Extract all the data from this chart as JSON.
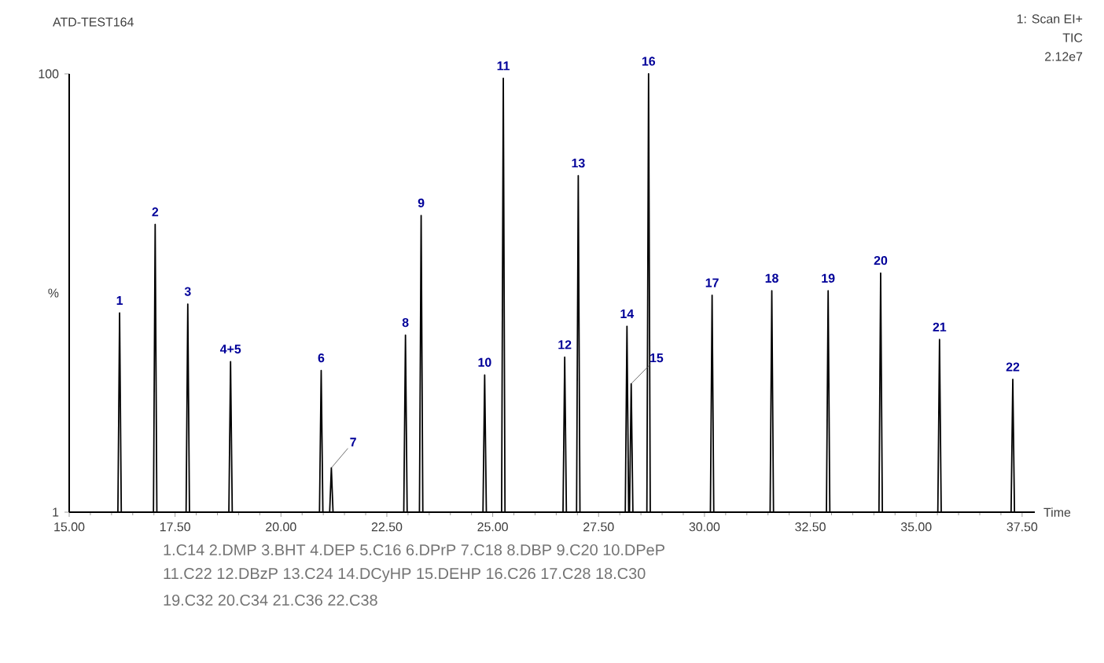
{
  "chart_data": {
    "type": "line",
    "title": "ATD-TEST164",
    "xlabel": "Time",
    "ylabel": "%",
    "xlim": [
      15,
      37.8
    ],
    "ylim": [
      1,
      100
    ],
    "xticks": [
      {
        "value": 15,
        "label": "15.00"
      },
      {
        "value": 17.5,
        "label": "17.50"
      },
      {
        "value": 20,
        "label": "20.00"
      },
      {
        "value": 22.5,
        "label": "22.50"
      },
      {
        "value": 25,
        "label": "25.00"
      },
      {
        "value": 27.5,
        "label": "27.50"
      },
      {
        "value": 30,
        "label": "30.00"
      },
      {
        "value": 32.5,
        "label": "32.50"
      },
      {
        "value": 35,
        "label": "35.00"
      },
      {
        "value": 37.5,
        "label": "37.50"
      }
    ],
    "yticks": [
      1,
      100
    ],
    "grid": false,
    "marker": "none",
    "line_style": "solid",
    "series": [
      {
        "color": "#000000",
        "x": [
          15,
          16.15,
          16.19,
          16.23,
          16.99,
          17.03,
          17.07,
          17.76,
          17.8,
          17.84,
          18.77,
          18.81,
          18.85,
          20.91,
          20.95,
          20.99,
          21.15,
          21.19,
          21.23,
          22.9,
          22.94,
          22.98,
          23.27,
          23.31,
          23.35,
          24.77,
          24.81,
          24.85,
          25.21,
          25.25,
          25.29,
          26.66,
          26.7,
          26.74,
          26.98,
          27.02,
          27.06,
          28.13,
          28.17,
          28.21,
          28.23,
          28.27,
          28.31,
          28.64,
          28.68,
          28.72,
          30.14,
          30.18,
          30.22,
          31.55,
          31.59,
          31.63,
          32.88,
          32.92,
          32.96,
          34.12,
          34.16,
          34.2,
          35.51,
          35.55,
          35.59,
          37.24,
          37.28,
          37.32,
          37.8
        ],
        "values": [
          1,
          1,
          46,
          1,
          1,
          66,
          1,
          1,
          48,
          1,
          1,
          35,
          1,
          1,
          33,
          1,
          1,
          11,
          1,
          1,
          41,
          1,
          1,
          68,
          1,
          1,
          32,
          1,
          1,
          99,
          1,
          1,
          36,
          1,
          1,
          77,
          1,
          1,
          43,
          1,
          1,
          30,
          1,
          1,
          100,
          1,
          1,
          50,
          1,
          1,
          51,
          1,
          1,
          51,
          1,
          1,
          55,
          1,
          1,
          40,
          1,
          1,
          31,
          1,
          1
        ]
      }
    ],
    "annotations": [
      {
        "text": "1",
        "x": 16.19,
        "y": 46
      },
      {
        "text": "2",
        "x": 17.03,
        "y": 66
      },
      {
        "text": "3",
        "x": 17.8,
        "y": 48
      },
      {
        "text": "4+5",
        "x": 18.81,
        "y": 35
      },
      {
        "text": "6",
        "x": 20.95,
        "y": 33
      },
      {
        "text": "7",
        "x": 21.19,
        "y": 11
      },
      {
        "text": "8",
        "x": 22.94,
        "y": 41
      },
      {
        "text": "9",
        "x": 23.31,
        "y": 68
      },
      {
        "text": "10",
        "x": 24.81,
        "y": 32
      },
      {
        "text": "11",
        "x": 25.25,
        "y": 99
      },
      {
        "text": "12",
        "x": 26.7,
        "y": 36
      },
      {
        "text": "13",
        "x": 27.02,
        "y": 77
      },
      {
        "text": "14",
        "x": 28.17,
        "y": 43
      },
      {
        "text": "15",
        "x": 28.27,
        "y": 30
      },
      {
        "text": "16",
        "x": 28.68,
        "y": 100
      },
      {
        "text": "17",
        "x": 30.18,
        "y": 50
      },
      {
        "text": "18",
        "x": 31.59,
        "y": 51
      },
      {
        "text": "19",
        "x": 32.92,
        "y": 51
      },
      {
        "text": "20",
        "x": 34.16,
        "y": 55
      },
      {
        "text": "21",
        "x": 35.55,
        "y": 40
      },
      {
        "text": "22",
        "x": 37.28,
        "y": 31
      },
      "1: Scan EI+",
      "TIC",
      "2.12e7",
      "1.C14 2.DMP 3.BHT 4.DEP 5.C16 6.DPrP 7.C18 8.DBP 9.C20 10.DPeP",
      "11.C22 12.DBzP 13.C24 14.DCyHP 15.DEHP 16.C26 17.C28 18.C30",
      "19.C32 20.C34 21.C36 22.C38"
    ]
  }
}
